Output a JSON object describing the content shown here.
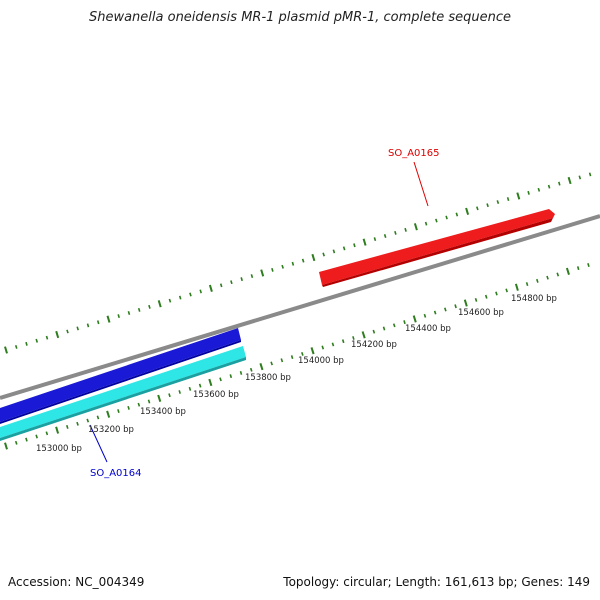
{
  "title": "Shewanella oneidensis MR-1 plasmid pMR-1, complete sequence",
  "footer": {
    "accession": "Accession: NC_004349",
    "summary": "Topology: circular; Length: 161,613 bp; Genes: 149"
  },
  "colors": {
    "backbone": "#8a8a8a",
    "tick": "#2e7d1e",
    "forward_gene": "#ee1c1c",
    "reverse_gene_outer": "#1a1ad6",
    "reverse_gene_inner": "#2ee6e6",
    "forward_label": "#dd0000",
    "reverse_label": "#0000cc"
  },
  "scale_labels": [
    "153000 bp",
    "153200 bp",
    "153400 bp",
    "153600 bp",
    "153800 bp",
    "154000 bp",
    "154200 bp",
    "154400 bp",
    "154600 bp",
    "154800 bp"
  ],
  "genes": [
    {
      "name": "SO_A0165",
      "strand": "forward"
    },
    {
      "name": "SO_A0164",
      "strand": "reverse"
    }
  ]
}
